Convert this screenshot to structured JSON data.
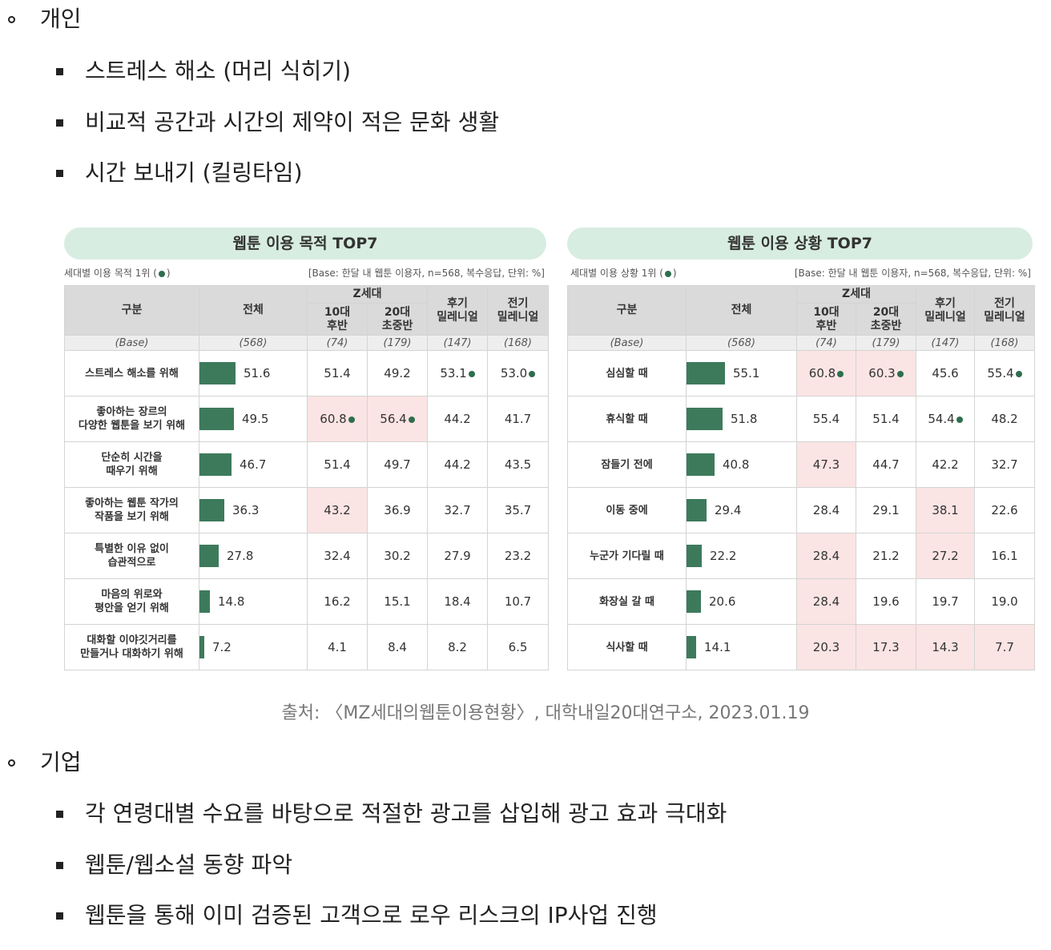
{
  "top_section": {
    "heading": "개인",
    "items": [
      "스트레스 해소 (머리 식히기)",
      "비교적 공간과 시간의 제약이 적은 문화 생활",
      "시간 보내기 (킬링타임)"
    ]
  },
  "bottom_section": {
    "heading": "기업",
    "items": [
      "각 연령대별 수요를 바탕으로 적절한 광고를 삽입해 광고 효과 극대화",
      "웹툰/웹소설 동향 파악",
      "웹툰을 통해 이미 검증된 고객으로 로우 리스크의 IP사업 진행"
    ]
  },
  "source": "출처: 〈MZ세대의웹툰이용현황〉, 대학내일20대연구소, 2023.01.19",
  "colors": {
    "bar": "#3d7a5c",
    "highlight": "#fbe4e4",
    "title_bg": "#d8ede1",
    "dot": "#2e6e4f"
  },
  "headers": {
    "category": "구분",
    "total": "전체",
    "zgen": "Z세대",
    "late10_a": "10대",
    "late10_b": "후반",
    "early20_a": "20대",
    "early20_b": "초중반",
    "late_mil_a": "후기",
    "late_mil_b": "밀레니얼",
    "early_mil_a": "전기",
    "early_mil_b": "밀레니얼",
    "base": [
      "(Base)",
      "(568)",
      "(74)",
      "(179)",
      "(147)",
      "(168)"
    ]
  },
  "chart_data": [
    {
      "type": "table",
      "title": "웹툰 이용 목적 TOP7",
      "note_prefix": "세대별 이용 목적 1위 (",
      "note_suffix": ")",
      "base_note": "[Base: 한달 내 웹툰 이용자, n=568, 복수응답, 단위: %]",
      "columns": [
        "전체",
        "10대 후반",
        "20대 초중반",
        "후기 밀레니얼",
        "전기 밀레니얼"
      ],
      "rows": [
        {
          "label1": "스트레스 해소를 위해",
          "label2": "",
          "values": [
            "51.6",
            "51.4",
            "49.2",
            "53.1",
            "53.0"
          ],
          "total": 51.6,
          "top": [
            false,
            false,
            false,
            true,
            true
          ],
          "hl": [
            false,
            false,
            false,
            false,
            false
          ]
        },
        {
          "label1": "좋아하는 장르의",
          "label2": "다양한 웹툰을 보기 위해",
          "values": [
            "49.5",
            "60.8",
            "56.4",
            "44.2",
            "41.7"
          ],
          "total": 49.5,
          "top": [
            false,
            true,
            true,
            false,
            false
          ],
          "hl": [
            false,
            true,
            true,
            false,
            false
          ]
        },
        {
          "label1": "단순히 시간을",
          "label2": "때우기 위해",
          "values": [
            "46.7",
            "51.4",
            "49.7",
            "44.2",
            "43.5"
          ],
          "total": 46.7,
          "top": [
            false,
            false,
            false,
            false,
            false
          ],
          "hl": [
            false,
            false,
            false,
            false,
            false
          ]
        },
        {
          "label1": "좋아하는 웹툰 작가의",
          "label2": "작품을 보기 위해",
          "values": [
            "36.3",
            "43.2",
            "36.9",
            "32.7",
            "35.7"
          ],
          "total": 36.3,
          "top": [
            false,
            false,
            false,
            false,
            false
          ],
          "hl": [
            false,
            true,
            false,
            false,
            false
          ]
        },
        {
          "label1": "특별한 이유 없이",
          "label2": "습관적으로",
          "values": [
            "27.8",
            "32.4",
            "30.2",
            "27.9",
            "23.2"
          ],
          "total": 27.8,
          "top": [
            false,
            false,
            false,
            false,
            false
          ],
          "hl": [
            false,
            false,
            false,
            false,
            false
          ]
        },
        {
          "label1": "마음의 위로와",
          "label2": "평안을 얻기 위해",
          "values": [
            "14.8",
            "16.2",
            "15.1",
            "18.4",
            "10.7"
          ],
          "total": 14.8,
          "top": [
            false,
            false,
            false,
            false,
            false
          ],
          "hl": [
            false,
            false,
            false,
            false,
            false
          ]
        },
        {
          "label1": "대화할 이야깃거리를",
          "label2": "만들거나 대화하기 위해",
          "values": [
            "7.2",
            "4.1",
            "8.4",
            "8.2",
            "6.5"
          ],
          "total": 7.2,
          "top": [
            false,
            false,
            false,
            false,
            false
          ],
          "hl": [
            false,
            false,
            false,
            false,
            false
          ]
        }
      ]
    },
    {
      "type": "table",
      "title": "웹툰 이용 상황 TOP7",
      "note_prefix": "세대별 이용 상황 1위 (",
      "note_suffix": ")",
      "base_note": "[Base: 한달 내 웹툰 이용자, n=568, 복수응답, 단위: %]",
      "columns": [
        "전체",
        "10대 후반",
        "20대 초중반",
        "후기 밀레니얼",
        "전기 밀레니얼"
      ],
      "rows": [
        {
          "label1": "심심할 때",
          "label2": "",
          "values": [
            "55.1",
            "60.8",
            "60.3",
            "45.6",
            "55.4"
          ],
          "total": 55.1,
          "top": [
            false,
            true,
            true,
            false,
            true
          ],
          "hl": [
            false,
            true,
            true,
            false,
            false
          ]
        },
        {
          "label1": "휴식할 때",
          "label2": "",
          "values": [
            "51.8",
            "55.4",
            "51.4",
            "54.4",
            "48.2"
          ],
          "total": 51.8,
          "top": [
            false,
            false,
            false,
            true,
            false
          ],
          "hl": [
            false,
            false,
            false,
            false,
            false
          ]
        },
        {
          "label1": "잠들기 전에",
          "label2": "",
          "values": [
            "40.8",
            "47.3",
            "44.7",
            "42.2",
            "32.7"
          ],
          "total": 40.8,
          "top": [
            false,
            false,
            false,
            false,
            false
          ],
          "hl": [
            false,
            true,
            false,
            false,
            false
          ]
        },
        {
          "label1": "이동 중에",
          "label2": "",
          "values": [
            "29.4",
            "28.4",
            "29.1",
            "38.1",
            "22.6"
          ],
          "total": 29.4,
          "top": [
            false,
            false,
            false,
            false,
            false
          ],
          "hl": [
            false,
            false,
            false,
            true,
            false
          ]
        },
        {
          "label1": "누군가 기다릴 때",
          "label2": "",
          "values": [
            "22.2",
            "28.4",
            "21.2",
            "27.2",
            "16.1"
          ],
          "total": 22.2,
          "top": [
            false,
            false,
            false,
            false,
            false
          ],
          "hl": [
            false,
            true,
            false,
            true,
            false
          ]
        },
        {
          "label1": "화장실 갈 때",
          "label2": "",
          "values": [
            "20.6",
            "28.4",
            "19.6",
            "19.7",
            "19.0"
          ],
          "total": 20.6,
          "top": [
            false,
            false,
            false,
            false,
            false
          ],
          "hl": [
            false,
            true,
            false,
            false,
            false
          ]
        },
        {
          "label1": "식사할 때",
          "label2": "",
          "values": [
            "14.1",
            "20.3",
            "17.3",
            "14.3",
            "7.7"
          ],
          "total": 14.1,
          "top": [
            false,
            false,
            false,
            false,
            false
          ],
          "hl": [
            false,
            true,
            true,
            true,
            true
          ]
        }
      ]
    }
  ]
}
